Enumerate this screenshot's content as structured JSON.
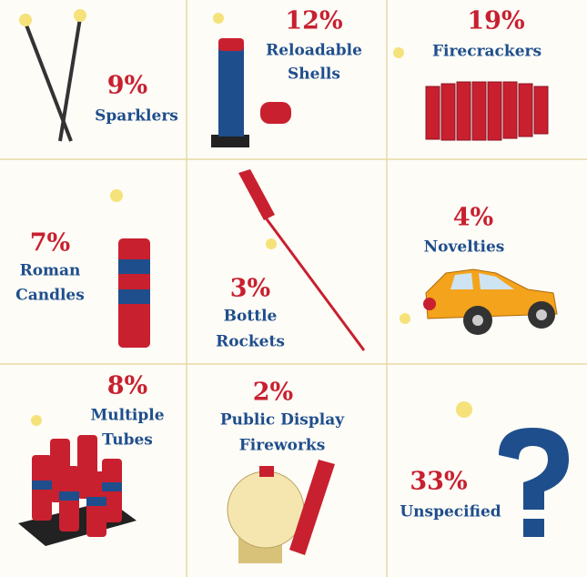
{
  "cells": [
    {
      "percent": "9%",
      "label": [
        "Sparklers"
      ]
    },
    {
      "percent": "12%",
      "label": [
        "Reloadable",
        "Shells"
      ]
    },
    {
      "percent": "19%",
      "label": [
        "Firecrackers"
      ]
    },
    {
      "percent": "7%",
      "label": [
        "Roman",
        "Candles"
      ]
    },
    {
      "percent": "3%",
      "label": [
        "Bottle",
        "Rockets"
      ]
    },
    {
      "percent": "4%",
      "label": [
        "Novelties"
      ]
    },
    {
      "percent": "8%",
      "label": [
        "Multiple",
        "Tubes"
      ]
    },
    {
      "percent": "2%",
      "label": [
        "Public Display",
        "Fireworks"
      ]
    },
    {
      "percent": "33%",
      "label": [
        "Unspecified"
      ]
    }
  ]
}
